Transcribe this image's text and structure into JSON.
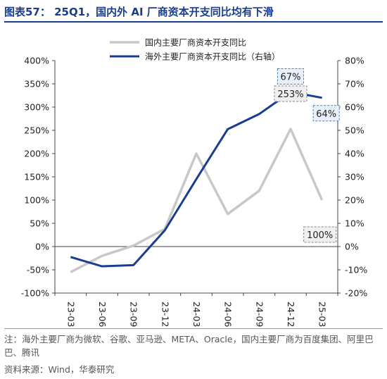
{
  "title": "图表57： 25Q1，国内外 AI 厂商资本开支同比均有下滑",
  "footnote": "注：海外主要厂商为微软、谷歌、亚马逊、META、Oracle，国内主要厂商为百度集团、阿里巴巴、腾讯",
  "source": "资料来源：Wind，华泰研究",
  "colors": {
    "domestic": "#c8c8c8",
    "overseas": "#1a3d8f",
    "callout_overseas": "#4a7ec8",
    "callout_domestic": "#888888"
  },
  "chart_data": {
    "type": "line",
    "categories": [
      "23-03",
      "23-06",
      "23-09",
      "23-12",
      "24-03",
      "24-06",
      "24-09",
      "24-12",
      "25-03"
    ],
    "series": [
      {
        "name": "国内主要厂商资本开支同比",
        "axis": "left",
        "values": [
          -55,
          -20,
          2,
          38,
          200,
          70,
          120,
          253,
          100
        ]
      },
      {
        "name": "海外主要厂商资本开支同比（右轴）",
        "axis": "right",
        "values": [
          -4.5,
          -8.5,
          -8,
          7,
          29,
          50.5,
          57,
          66.5,
          64
        ]
      }
    ],
    "y_left": {
      "min": -100,
      "max": 400,
      "ticks": [
        "-100%",
        "-50%",
        "0%",
        "50%",
        "100%",
        "150%",
        "200%",
        "250%",
        "300%",
        "350%",
        "400%"
      ]
    },
    "y_right": {
      "min": -20,
      "max": 80,
      "ticks": [
        "-20%",
        "-10%",
        "0%",
        "10%",
        "20%",
        "30%",
        "40%",
        "50%",
        "60%",
        "70%",
        "80%"
      ]
    },
    "callouts": [
      {
        "text": "67%",
        "series": 1,
        "index": 7
      },
      {
        "text": "64%",
        "series": 1,
        "index": 8
      },
      {
        "text": "253%",
        "series": 0,
        "index": 7
      },
      {
        "text": "100%",
        "series": 0,
        "index": 8
      }
    ],
    "legend_position": "top-center"
  }
}
